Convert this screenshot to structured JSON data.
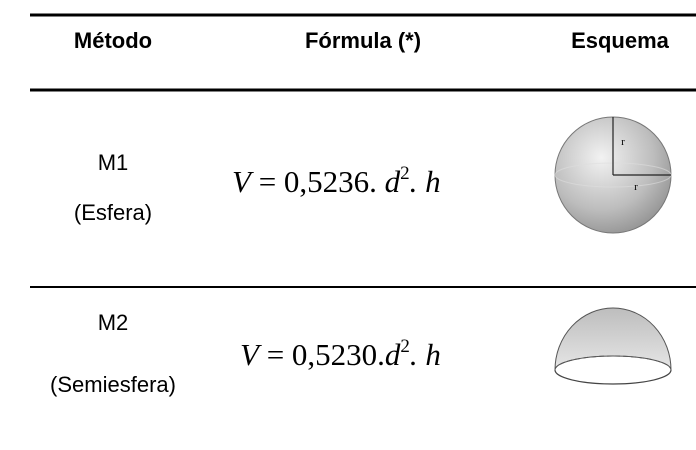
{
  "header": [
    "Método",
    "Fórmula (*)",
    "Esquema"
  ],
  "rows": [
    {
      "method": "M1",
      "name": "(Esfera)",
      "formula": {
        "lhs": "V",
        "eq": "=",
        "coef": "0,5236.",
        "var": "d",
        "exp": "2",
        "tail": ". h"
      },
      "labels": [
        "r",
        "r"
      ]
    },
    {
      "method": "M2",
      "name": "(Semiesfera)",
      "formula": {
        "lhs": "V",
        "eq": "=",
        "coef": "0,5230.",
        "var": "d",
        "exp": "2",
        "tail": ". h"
      }
    }
  ]
}
